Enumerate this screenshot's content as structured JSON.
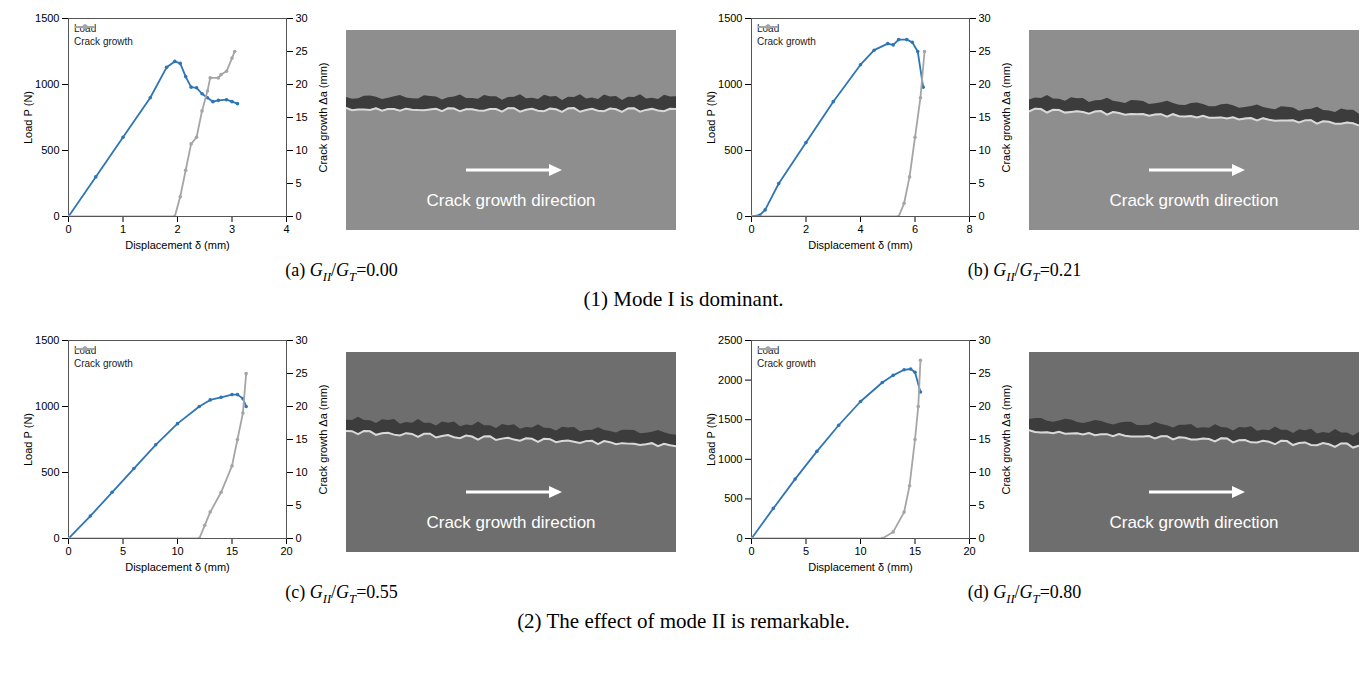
{
  "chart_data": [
    {
      "type": "line",
      "caption": "(a) GII/GT=0.00",
      "photo_label": "Crack growth direction",
      "xlabel": "Displacement δ (mm)",
      "ylabel": "Load P (N)",
      "y2label": "Crack growth Δa (mm)",
      "xlim": [
        0,
        4
      ],
      "xticks": [
        0,
        1,
        2,
        3,
        4
      ],
      "ylim": [
        0,
        1500
      ],
      "yticks": [
        0,
        500,
        1000,
        1500
      ],
      "y2lim": [
        0,
        30
      ],
      "y2ticks": [
        0,
        5,
        10,
        15,
        20,
        25,
        30
      ],
      "legend": "upper left",
      "series": [
        {
          "name": "Load",
          "color": "#2e75b6",
          "marker": "circle",
          "x": [
            0,
            0.5,
            1,
            1.5,
            1.8,
            1.95,
            2.05,
            2.15,
            2.25,
            2.35,
            2.45,
            2.55,
            2.65,
            2.75,
            2.9,
            3.0,
            3.1
          ],
          "values": [
            0,
            300,
            600,
            900,
            1130,
            1175,
            1160,
            1060,
            980,
            975,
            930,
            900,
            870,
            880,
            885,
            870,
            855
          ]
        },
        {
          "name": "Crack growth",
          "color": "#a5a5a5",
          "marker": "circle",
          "axis": "y2",
          "x": [
            0,
            1.95,
            2.05,
            2.15,
            2.25,
            2.35,
            2.45,
            2.55,
            2.6,
            2.75,
            2.8,
            2.9,
            3.0,
            3.05
          ],
          "values": [
            0,
            0,
            3,
            7,
            11,
            12,
            16,
            19,
            21,
            21,
            21.5,
            22,
            24,
            25
          ]
        }
      ]
    },
    {
      "type": "line",
      "caption": "(b) GII/GT=0.21",
      "photo_label": "Crack growth direction",
      "xlabel": "Displacement δ (mm)",
      "ylabel": "Load P (N)",
      "y2label": "Crack growth Δa (mm)",
      "xlim": [
        0,
        8
      ],
      "xticks": [
        0,
        2,
        4,
        6,
        8
      ],
      "ylim": [
        0,
        1500
      ],
      "yticks": [
        0,
        500,
        1000,
        1500
      ],
      "y2lim": [
        0,
        30
      ],
      "y2ticks": [
        0,
        5,
        10,
        15,
        20,
        25,
        30
      ],
      "legend": "upper left",
      "series": [
        {
          "name": "Load",
          "color": "#2e75b6",
          "marker": "circle",
          "x": [
            0,
            0.3,
            0.5,
            1,
            2,
            3,
            4,
            4.5,
            5,
            5.2,
            5.4,
            5.7,
            5.9,
            6.1,
            6.3
          ],
          "values": [
            0,
            10,
            50,
            250,
            560,
            870,
            1150,
            1260,
            1310,
            1300,
            1340,
            1340,
            1320,
            1250,
            980
          ]
        },
        {
          "name": "Crack growth",
          "color": "#a5a5a5",
          "marker": "circle",
          "axis": "y2",
          "x": [
            0,
            5.4,
            5.6,
            5.8,
            6.0,
            6.2,
            6.35
          ],
          "values": [
            0,
            0,
            2,
            6,
            12,
            18,
            25
          ]
        }
      ]
    },
    {
      "type": "line",
      "caption": "(c) GII/GT=0.55",
      "photo_label": "Crack growth direction",
      "xlabel": "Displacement δ (mm)",
      "ylabel": "Load P (N)",
      "y2label": "Crack growth Δa (mm)",
      "xlim": [
        0,
        20
      ],
      "xticks": [
        0,
        5,
        10,
        15,
        20
      ],
      "ylim": [
        0,
        1500
      ],
      "yticks": [
        0,
        500,
        1000,
        1500
      ],
      "y2lim": [
        0,
        30
      ],
      "y2ticks": [
        0,
        5,
        10,
        15,
        20,
        25,
        30
      ],
      "legend": "upper left",
      "series": [
        {
          "name": "Load",
          "color": "#2e75b6",
          "marker": "circle",
          "x": [
            0,
            2,
            4,
            6,
            8,
            10,
            12,
            13,
            14,
            15,
            15.5,
            16,
            16.3
          ],
          "values": [
            0,
            170,
            350,
            530,
            710,
            870,
            1000,
            1050,
            1070,
            1090,
            1090,
            1060,
            1000
          ]
        },
        {
          "name": "Crack growth",
          "color": "#a5a5a5",
          "marker": "circle",
          "axis": "y2",
          "x": [
            0,
            12,
            12.5,
            13,
            14,
            15,
            15.5,
            16,
            16.3
          ],
          "values": [
            0,
            0,
            2,
            4,
            7,
            11,
            15,
            19,
            25
          ]
        }
      ]
    },
    {
      "type": "line",
      "caption": "(d) GII/GT=0.80",
      "photo_label": "Crack growth direction",
      "xlabel": "Displacement δ (mm)",
      "ylabel": "Load P (N)",
      "y2label": "Crack growth Δa (mm)",
      "xlim": [
        0,
        20
      ],
      "xticks": [
        0,
        5,
        10,
        15,
        20
      ],
      "ylim": [
        0,
        2500
      ],
      "yticks": [
        0,
        500,
        1000,
        1500,
        2000,
        2500
      ],
      "y2lim": [
        0,
        30
      ],
      "y2ticks": [
        0,
        5,
        10,
        15,
        20,
        25,
        30
      ],
      "legend": "upper left",
      "series": [
        {
          "name": "Load",
          "color": "#2e75b6",
          "marker": "circle",
          "x": [
            0,
            2,
            4,
            6,
            8,
            10,
            12,
            13,
            14,
            14.6,
            15,
            15.5
          ],
          "values": [
            0,
            380,
            750,
            1100,
            1430,
            1730,
            1970,
            2060,
            2130,
            2140,
            2100,
            1850
          ]
        },
        {
          "name": "Crack growth",
          "color": "#a5a5a5",
          "marker": "circle",
          "axis": "y2",
          "x": [
            0,
            12,
            13,
            14,
            14.5,
            15,
            15.3,
            15.5
          ],
          "values": [
            0,
            0,
            1,
            4,
            8,
            15,
            20,
            27
          ]
        }
      ]
    }
  ],
  "group_captions": [
    "(1) Mode I is dominant.",
    "(2) The effect of mode II is remarkable."
  ]
}
